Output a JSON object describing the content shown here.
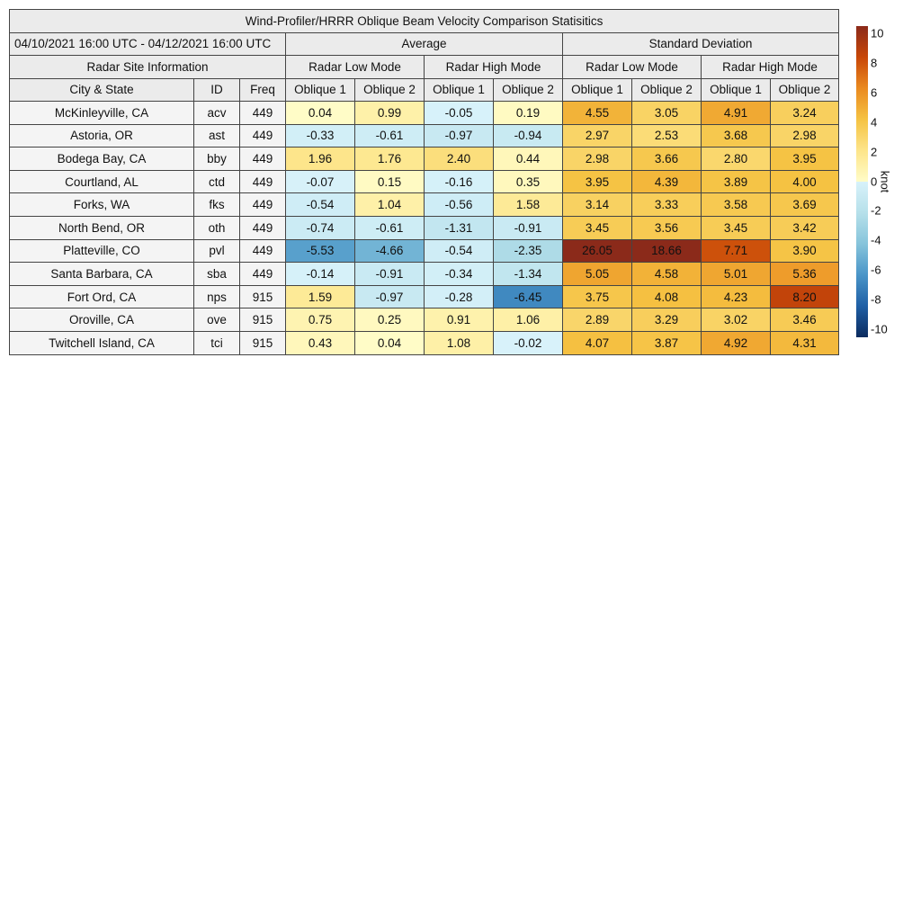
{
  "title": "Wind-Profiler/HRRR Oblique Beam Velocity Comparison Statisitics",
  "period": "04/10/2021 16:00 UTC - 04/12/2021 16:00 UTC",
  "groups": {
    "average": "Average",
    "std": "Standard Deviation"
  },
  "site_info": "Radar Site Information",
  "modes": [
    "Radar Low Mode",
    "Radar High Mode",
    "Radar Low Mode",
    "Radar High Mode"
  ],
  "columns": [
    "City & State",
    "ID",
    "Freq",
    "Oblique 1",
    "Oblique 2",
    "Oblique 1",
    "Oblique 2",
    "Oblique 1",
    "Oblique 2",
    "Oblique 1",
    "Oblique 2"
  ],
  "colorbar": {
    "label": "knot",
    "ticks": [
      "10",
      "8",
      "6",
      "4",
      "2",
      "0",
      "-2",
      "-4",
      "-6",
      "-8",
      "-10"
    ],
    "range": [
      -10,
      10
    ]
  },
  "chart_data": {
    "type": "table",
    "rows": [
      {
        "city": "McKinleyville, CA",
        "id": "acv",
        "freq": "449",
        "values": [
          "0.04",
          "0.99",
          "-0.05",
          "0.19",
          "4.55",
          "3.05",
          "4.91",
          "3.24"
        ]
      },
      {
        "city": "Astoria, OR",
        "id": "ast",
        "freq": "449",
        "values": [
          "-0.33",
          "-0.61",
          "-0.97",
          "-0.94",
          "2.97",
          "2.53",
          "3.68",
          "2.98"
        ]
      },
      {
        "city": "Bodega Bay, CA",
        "id": "bby",
        "freq": "449",
        "values": [
          "1.96",
          "1.76",
          "2.40",
          "0.44",
          "2.98",
          "3.66",
          "2.80",
          "3.95"
        ]
      },
      {
        "city": "Courtland, AL",
        "id": "ctd",
        "freq": "449",
        "values": [
          "-0.07",
          "0.15",
          "-0.16",
          "0.35",
          "3.95",
          "4.39",
          "3.89",
          "4.00"
        ]
      },
      {
        "city": "Forks, WA",
        "id": "fks",
        "freq": "449",
        "values": [
          "-0.54",
          "1.04",
          "-0.56",
          "1.58",
          "3.14",
          "3.33",
          "3.58",
          "3.69"
        ]
      },
      {
        "city": "North Bend, OR",
        "id": "oth",
        "freq": "449",
        "values": [
          "-0.74",
          "-0.61",
          "-1.31",
          "-0.91",
          "3.45",
          "3.56",
          "3.45",
          "3.42"
        ]
      },
      {
        "city": "Platteville, CO",
        "id": "pvl",
        "freq": "449",
        "values": [
          "-5.53",
          "-4.66",
          "-0.54",
          "-2.35",
          "26.05",
          "18.66",
          "7.71",
          "3.90"
        ]
      },
      {
        "city": "Santa Barbara, CA",
        "id": "sba",
        "freq": "449",
        "values": [
          "-0.14",
          "-0.91",
          "-0.34",
          "-1.34",
          "5.05",
          "4.58",
          "5.01",
          "5.36"
        ]
      },
      {
        "city": "Fort Ord, CA",
        "id": "nps",
        "freq": "915",
        "values": [
          "1.59",
          "-0.97",
          "-0.28",
          "-6.45",
          "3.75",
          "4.08",
          "4.23",
          "8.20"
        ]
      },
      {
        "city": "Oroville, CA",
        "id": "ove",
        "freq": "915",
        "values": [
          "0.75",
          "0.25",
          "0.91",
          "1.06",
          "2.89",
          "3.29",
          "3.02",
          "3.46"
        ]
      },
      {
        "city": "Twitchell Island, CA",
        "id": "tci",
        "freq": "915",
        "values": [
          "0.43",
          "0.04",
          "1.08",
          "-0.02",
          "4.07",
          "3.87",
          "4.92",
          "4.31"
        ]
      }
    ]
  }
}
